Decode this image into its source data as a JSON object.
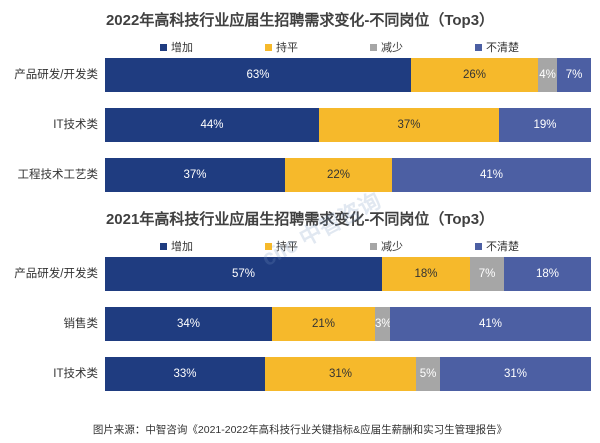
{
  "colors": {
    "increase": "#1f3c80",
    "flat": "#f6b92b",
    "decrease": "#a6a6a6",
    "unclear": "#4c5fa3"
  },
  "chart_data": [
    {
      "type": "bar",
      "stacked": true,
      "orientation": "horizontal",
      "title": "2022年高科技行业应届生招聘需求变化-不同岗位（Top3）",
      "categories": [
        "产品研发/开发类",
        "IT技术类",
        "工程技术工艺类"
      ],
      "series": [
        {
          "name": "增加",
          "values": [
            63,
            44,
            37
          ]
        },
        {
          "name": "持平",
          "values": [
            26,
            37,
            22
          ]
        },
        {
          "name": "减少",
          "values": [
            4,
            0,
            0
          ]
        },
        {
          "name": "不清楚",
          "values": [
            7,
            19,
            41
          ]
        }
      ],
      "labels": [
        [
          "63%",
          "44%",
          "37%"
        ],
        [
          "26%",
          "37%",
          "22%"
        ],
        [
          "4%",
          "",
          ""
        ],
        [
          "7%",
          "19%",
          "41%"
        ]
      ],
      "xlim": [
        0,
        100
      ],
      "legend_position": "top"
    },
    {
      "type": "bar",
      "stacked": true,
      "orientation": "horizontal",
      "title": "2021年高科技行业应届生招聘需求变化-不同岗位（Top3）",
      "categories": [
        "产品研发/开发类",
        "销售类",
        "IT技术类"
      ],
      "series": [
        {
          "name": "增加",
          "values": [
            57,
            34,
            33
          ]
        },
        {
          "name": "持平",
          "values": [
            18,
            21,
            31
          ]
        },
        {
          "name": "减少",
          "values": [
            7,
            3,
            5
          ]
        },
        {
          "name": "不清楚",
          "values": [
            18,
            41,
            31
          ]
        }
      ],
      "labels": [
        [
          "57%",
          "34%",
          "33%"
        ],
        [
          "18%",
          "21%",
          "31%"
        ],
        [
          "7%",
          "3%",
          "5%"
        ],
        [
          "18%",
          "41%",
          "31%"
        ]
      ],
      "xlim": [
        0,
        100
      ],
      "legend_position": "top"
    }
  ],
  "footnote": "图片来源：中智咨询《2021-2022年高科技行业关键指标&应届生薪酬和实习生管理报告》",
  "watermark": "ciic中智咨询"
}
